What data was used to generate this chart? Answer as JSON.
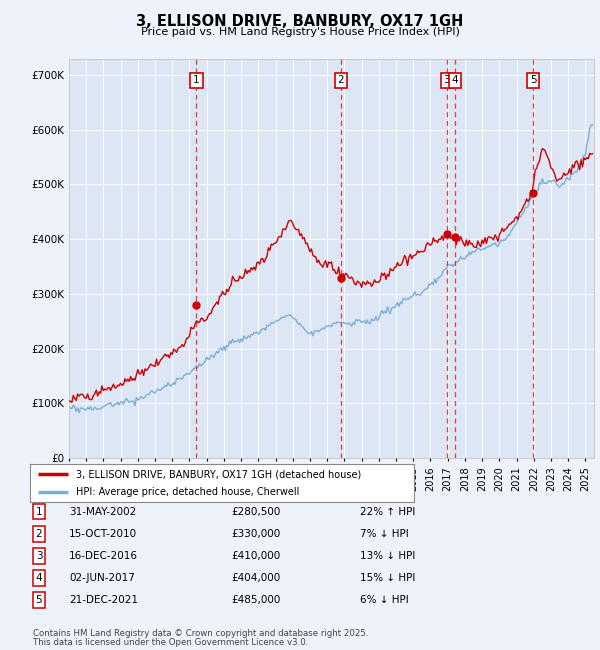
{
  "title": "3, ELLISON DRIVE, BANBURY, OX17 1GH",
  "subtitle": "Price paid vs. HM Land Registry's House Price Index (HPI)",
  "background_color": "#eef2fa",
  "plot_bg_color": "#dde6f5",
  "ylim": [
    0,
    730000
  ],
  "yticks": [
    0,
    100000,
    200000,
    300000,
    400000,
    500000,
    600000,
    700000
  ],
  "ytick_labels": [
    "£0",
    "£100K",
    "£200K",
    "£300K",
    "£400K",
    "£500K",
    "£600K",
    "£700K"
  ],
  "red_line_color": "#cc0000",
  "blue_line_color": "#7bafd4",
  "legend_house": "3, ELLISON DRIVE, BANBURY, OX17 1GH (detached house)",
  "legend_hpi": "HPI: Average price, detached house, Cherwell",
  "transactions": [
    {
      "num": 1,
      "date": "31-MAY-2002",
      "price": 280500,
      "price_str": "£280,500",
      "pct": "22%",
      "dir": "↑",
      "year_x": 2002.4
    },
    {
      "num": 2,
      "date": "15-OCT-2010",
      "price": 330000,
      "price_str": "£330,000",
      "pct": "7%",
      "dir": "↓",
      "year_x": 2010.8
    },
    {
      "num": 3,
      "date": "16-DEC-2016",
      "price": 410000,
      "price_str": "£410,000",
      "pct": "13%",
      "dir": "↓",
      "year_x": 2016.95
    },
    {
      "num": 4,
      "date": "02-JUN-2017",
      "price": 404000,
      "price_str": "£404,000",
      "pct": "15%",
      "dir": "↓",
      "year_x": 2017.42
    },
    {
      "num": 5,
      "date": "21-DEC-2021",
      "price": 485000,
      "price_str": "£485,000",
      "pct": "6%",
      "dir": "↓",
      "year_x": 2021.97
    }
  ],
  "footer_line1": "Contains HM Land Registry data © Crown copyright and database right 2025.",
  "footer_line2": "This data is licensed under the Open Government Licence v3.0.",
  "xmin": 1995.0,
  "xmax": 2025.5,
  "hpi_anchors": [
    [
      1995.0,
      91000
    ],
    [
      1995.5,
      89000
    ],
    [
      1996.0,
      90000
    ],
    [
      1996.5,
      88000
    ],
    [
      1997.0,
      92000
    ],
    [
      1997.5,
      94000
    ],
    [
      1998.0,
      96000
    ],
    [
      1998.5,
      99000
    ],
    [
      1999.0,
      103000
    ],
    [
      1999.5,
      108000
    ],
    [
      2000.0,
      114000
    ],
    [
      2000.5,
      120000
    ],
    [
      2001.0,
      128000
    ],
    [
      2001.5,
      138000
    ],
    [
      2002.0,
      148000
    ],
    [
      2002.5,
      160000
    ],
    [
      2003.0,
      172000
    ],
    [
      2003.5,
      185000
    ],
    [
      2004.0,
      196000
    ],
    [
      2004.5,
      208000
    ],
    [
      2005.0,
      212000
    ],
    [
      2005.5,
      215000
    ],
    [
      2006.0,
      220000
    ],
    [
      2006.5,
      228000
    ],
    [
      2007.0,
      240000
    ],
    [
      2007.5,
      248000
    ],
    [
      2008.0,
      245000
    ],
    [
      2008.5,
      232000
    ],
    [
      2009.0,
      218000
    ],
    [
      2009.5,
      222000
    ],
    [
      2010.0,
      228000
    ],
    [
      2010.5,
      235000
    ],
    [
      2011.0,
      235000
    ],
    [
      2011.5,
      234000
    ],
    [
      2012.0,
      236000
    ],
    [
      2012.5,
      240000
    ],
    [
      2013.0,
      248000
    ],
    [
      2013.5,
      258000
    ],
    [
      2014.0,
      268000
    ],
    [
      2014.5,
      278000
    ],
    [
      2015.0,
      285000
    ],
    [
      2015.5,
      295000
    ],
    [
      2016.0,
      308000
    ],
    [
      2016.5,
      322000
    ],
    [
      2017.0,
      340000
    ],
    [
      2017.5,
      352000
    ],
    [
      2018.0,
      360000
    ],
    [
      2018.5,
      368000
    ],
    [
      2019.0,
      375000
    ],
    [
      2019.5,
      378000
    ],
    [
      2020.0,
      382000
    ],
    [
      2020.5,
      395000
    ],
    [
      2021.0,
      415000
    ],
    [
      2021.5,
      438000
    ],
    [
      2022.0,
      465000
    ],
    [
      2022.5,
      490000
    ],
    [
      2023.0,
      488000
    ],
    [
      2023.5,
      482000
    ],
    [
      2024.0,
      490000
    ],
    [
      2024.5,
      510000
    ],
    [
      2025.0,
      535000
    ],
    [
      2025.3,
      590000
    ]
  ],
  "red_anchors": [
    [
      1995.0,
      108000
    ],
    [
      1995.5,
      112000
    ],
    [
      1996.0,
      116000
    ],
    [
      1996.5,
      119000
    ],
    [
      1997.0,
      125000
    ],
    [
      1997.5,
      132000
    ],
    [
      1998.0,
      140000
    ],
    [
      1998.5,
      148000
    ],
    [
      1999.0,
      157000
    ],
    [
      1999.5,
      165000
    ],
    [
      2000.0,
      173000
    ],
    [
      2000.5,
      182000
    ],
    [
      2001.0,
      192000
    ],
    [
      2001.5,
      205000
    ],
    [
      2002.0,
      222000
    ],
    [
      2002.3,
      240000
    ],
    [
      2002.5,
      248000
    ],
    [
      2003.0,
      265000
    ],
    [
      2003.5,
      288000
    ],
    [
      2004.0,
      310000
    ],
    [
      2004.5,
      332000
    ],
    [
      2005.0,
      340000
    ],
    [
      2005.5,
      348000
    ],
    [
      2006.0,
      362000
    ],
    [
      2006.5,
      378000
    ],
    [
      2007.0,
      400000
    ],
    [
      2007.5,
      418000
    ],
    [
      2007.8,
      435000
    ],
    [
      2008.0,
      428000
    ],
    [
      2008.5,
      405000
    ],
    [
      2009.0,
      378000
    ],
    [
      2009.3,
      358000
    ],
    [
      2009.5,
      355000
    ],
    [
      2010.0,
      348000
    ],
    [
      2010.3,
      338000
    ],
    [
      2010.6,
      330000
    ],
    [
      2010.9,
      328000
    ],
    [
      2011.0,
      325000
    ],
    [
      2011.5,
      318000
    ],
    [
      2012.0,
      312000
    ],
    [
      2012.5,
      310000
    ],
    [
      2013.0,
      318000
    ],
    [
      2013.5,
      330000
    ],
    [
      2014.0,
      345000
    ],
    [
      2014.5,
      358000
    ],
    [
      2015.0,
      368000
    ],
    [
      2015.5,
      378000
    ],
    [
      2016.0,
      388000
    ],
    [
      2016.5,
      398000
    ],
    [
      2016.9,
      408000
    ],
    [
      2017.0,
      405000
    ],
    [
      2017.2,
      402000
    ],
    [
      2017.5,
      398000
    ],
    [
      2018.0,
      392000
    ],
    [
      2018.5,
      390000
    ],
    [
      2019.0,
      395000
    ],
    [
      2019.5,
      400000
    ],
    [
      2020.0,
      405000
    ],
    [
      2020.5,
      415000
    ],
    [
      2021.0,
      430000
    ],
    [
      2021.5,
      448000
    ],
    [
      2021.9,
      462000
    ],
    [
      2022.0,
      492000
    ],
    [
      2022.3,
      520000
    ],
    [
      2022.5,
      545000
    ],
    [
      2022.8,
      530000
    ],
    [
      2023.0,
      510000
    ],
    [
      2023.3,
      498000
    ],
    [
      2023.5,
      490000
    ],
    [
      2023.8,
      495000
    ],
    [
      2024.0,
      505000
    ],
    [
      2024.5,
      515000
    ],
    [
      2025.0,
      520000
    ],
    [
      2025.3,
      540000
    ]
  ]
}
